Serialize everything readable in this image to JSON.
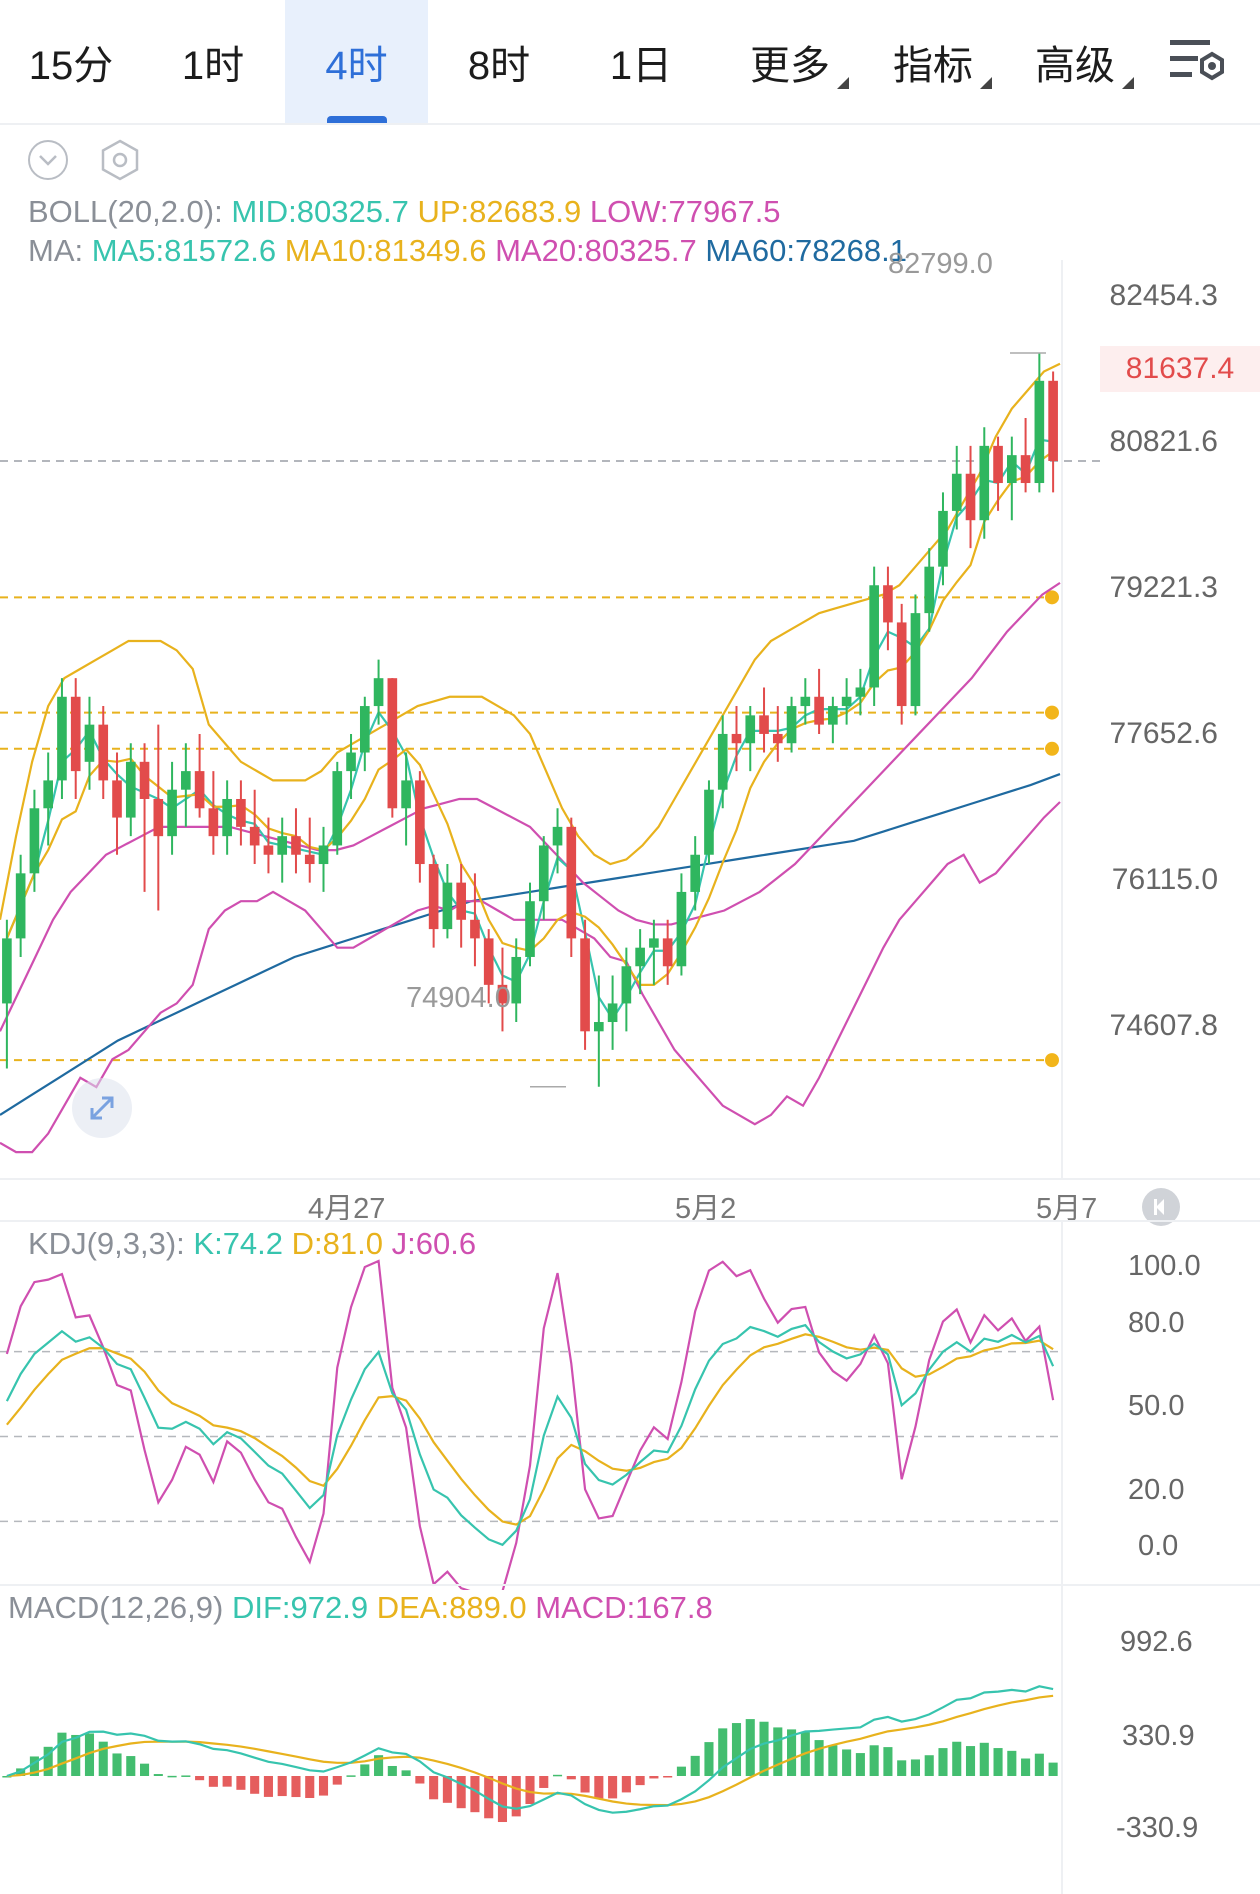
{
  "tabs": [
    {
      "label": "15分",
      "active": false,
      "dropdown": false
    },
    {
      "label": "1时",
      "active": false,
      "dropdown": false
    },
    {
      "label": "4时",
      "active": true,
      "dropdown": false
    },
    {
      "label": "8时",
      "active": false,
      "dropdown": false
    },
    {
      "label": "1日",
      "active": false,
      "dropdown": false
    },
    {
      "label": "更多",
      "active": false,
      "dropdown": true
    },
    {
      "label": "指标",
      "active": false,
      "dropdown": true
    },
    {
      "label": "高级",
      "active": false,
      "dropdown": true
    }
  ],
  "settings_icon": "chart-settings-icon",
  "colors": {
    "up": "#2fb65f",
    "down": "#e24b4b",
    "boll_mid": "#37c4ae",
    "boll_up": "#e8b21d",
    "boll_low": "#cf4fb0",
    "ma60": "#1f6aa0",
    "kdj_k": "#37c4ae",
    "kdj_d": "#e8b21d",
    "kdj_j": "#cf4fb0",
    "accent": "#2e6fd8"
  },
  "main": {
    "boll": {
      "prefix": "BOLL(20,2.0):",
      "mid": "MID:80325.7",
      "up": "UP:82683.9",
      "low": "LOW:77967.5"
    },
    "ma": {
      "prefix": "MA:",
      "ma5": "MA5:81572.6",
      "ma10": "MA10:81349.6",
      "ma20": "MA20:80325.7",
      "ma60": "MA60:78268.1"
    },
    "price_axis": [
      "82454.3",
      "80821.6",
      "79221.3",
      "77652.6",
      "76115.0",
      "74607.8"
    ],
    "current_price": "81637.4",
    "high_label": "82799.0",
    "low_label": "74904.0",
    "alert_lines": [
      80170,
      78930,
      78540,
      75190
    ],
    "x_labels": [
      {
        "text": "4月27",
        "index": 25
      },
      {
        "text": "5月2",
        "index": 52
      },
      {
        "text": "5月7",
        "index": 78
      }
    ]
  },
  "chart_data": [
    {
      "type": "candlestick",
      "title": "4时",
      "ylim": [
        73900,
        83800
      ],
      "candles_ohlc": [
        [
          75800,
          76700,
          75100,
          76500
        ],
        [
          76500,
          77400,
          76300,
          77200
        ],
        [
          77200,
          78100,
          77000,
          77900
        ],
        [
          77900,
          78500,
          77500,
          78200
        ],
        [
          78200,
          79300,
          78000,
          79100
        ],
        [
          79100,
          79300,
          78000,
          78300
        ],
        [
          78400,
          79100,
          78100,
          78800
        ],
        [
          78800,
          79000,
          78000,
          78200
        ],
        [
          78200,
          78500,
          77400,
          77800
        ],
        [
          77800,
          78600,
          77600,
          78400
        ],
        [
          78400,
          78600,
          77000,
          78000
        ],
        [
          78000,
          78800,
          76800,
          77600
        ],
        [
          77600,
          78400,
          77400,
          78100
        ],
        [
          78100,
          78600,
          77700,
          78300
        ],
        [
          78300,
          78700,
          77800,
          77900
        ],
        [
          77900,
          78300,
          77400,
          77600
        ],
        [
          77600,
          78200,
          77400,
          78000
        ],
        [
          78000,
          78200,
          77500,
          77700
        ],
        [
          77700,
          78100,
          77300,
          77500
        ],
        [
          77500,
          77800,
          77200,
          77400
        ],
        [
          77400,
          77800,
          77100,
          77600
        ],
        [
          77600,
          77900,
          77200,
          77400
        ],
        [
          77400,
          77800,
          77100,
          77300
        ],
        [
          77300,
          77700,
          77000,
          77500
        ],
        [
          77500,
          78400,
          77400,
          78300
        ],
        [
          78300,
          78700,
          78000,
          78500
        ],
        [
          78500,
          79100,
          78300,
          79000
        ],
        [
          79000,
          79500,
          78800,
          79300
        ],
        [
          79300,
          79300,
          77800,
          77900
        ],
        [
          77900,
          78500,
          77500,
          78200
        ],
        [
          78200,
          78300,
          77100,
          77300
        ],
        [
          77300,
          77400,
          76400,
          76600
        ],
        [
          76600,
          77300,
          76500,
          77100
        ],
        [
          77100,
          77300,
          76400,
          76700
        ],
        [
          76700,
          77200,
          76200,
          76500
        ],
        [
          76500,
          76600,
          75800,
          76000
        ],
        [
          76000,
          76400,
          75500,
          75800
        ],
        [
          75800,
          76500,
          75600,
          76300
        ],
        [
          76300,
          77100,
          76200,
          76900
        ],
        [
          76900,
          77600,
          76700,
          77500
        ],
        [
          77500,
          77900,
          77200,
          77700
        ],
        [
          77700,
          77800,
          76300,
          76500
        ],
        [
          76500,
          76700,
          75300,
          75500
        ],
        [
          75500,
          76100,
          74904,
          75600
        ],
        [
          75600,
          76100,
          75300,
          75800
        ],
        [
          75800,
          76400,
          75500,
          76200
        ],
        [
          76200,
          76600,
          75900,
          76400
        ],
        [
          76400,
          76700,
          76000,
          76500
        ],
        [
          76500,
          76700,
          76000,
          76200
        ],
        [
          76200,
          77200,
          76100,
          77000
        ],
        [
          77000,
          77600,
          76800,
          77400
        ],
        [
          77400,
          78200,
          77300,
          78100
        ],
        [
          78100,
          78900,
          77900,
          78700
        ],
        [
          78700,
          79000,
          78300,
          78600
        ],
        [
          78600,
          79000,
          78300,
          78900
        ],
        [
          78900,
          79200,
          78500,
          78700
        ],
        [
          78700,
          79000,
          78400,
          78600
        ],
        [
          78600,
          79100,
          78500,
          79000
        ],
        [
          79000,
          79300,
          78800,
          79100
        ],
        [
          79100,
          79400,
          78700,
          78800
        ],
        [
          78800,
          79100,
          78600,
          79000
        ],
        [
          79000,
          79300,
          78800,
          79100
        ],
        [
          79100,
          79400,
          78900,
          79200
        ],
        [
          79200,
          80500,
          79000,
          80300
        ],
        [
          80300,
          80500,
          79600,
          79900
        ],
        [
          79900,
          80100,
          78800,
          79000
        ],
        [
          79000,
          80200,
          78900,
          80000
        ],
        [
          80000,
          80700,
          79800,
          80500
        ],
        [
          80500,
          81300,
          80300,
          81100
        ],
        [
          81100,
          81800,
          80900,
          81500
        ],
        [
          81500,
          81800,
          80700,
          81000
        ],
        [
          81000,
          82000,
          80800,
          81800
        ],
        [
          81800,
          81900,
          81100,
          81400
        ],
        [
          81400,
          81900,
          81000,
          81700
        ],
        [
          81700,
          82100,
          81300,
          81400
        ],
        [
          81400,
          82799,
          81300,
          82500
        ],
        [
          82500,
          82600,
          81300,
          81637.4
        ]
      ],
      "boll_up": [
        76700,
        77600,
        78400,
        79000,
        79300,
        79400,
        79500,
        79600,
        79700,
        79700,
        79700,
        79600,
        79400,
        78800,
        78600,
        78400,
        78300,
        78200,
        78200,
        78200,
        78300,
        78500,
        78600,
        78700,
        78800,
        78900,
        79000,
        79050,
        79100,
        79100,
        79100,
        79000,
        78900,
        78700,
        78300,
        77900,
        77600,
        77400,
        77300,
        77350,
        77500,
        77700,
        78000,
        78300,
        78600,
        78900,
        79200,
        79500,
        79700,
        79800,
        79900,
        80000,
        80050,
        80100,
        80150,
        80200,
        80300,
        80500,
        80700,
        80900,
        81200,
        81500,
        81900,
        82200,
        82400,
        82600,
        82683.9
      ],
      "boll_mid": [
        75500,
        75900,
        76300,
        76700,
        77000,
        77200,
        77400,
        77500,
        77600,
        77700,
        77700,
        77700,
        77700,
        77700,
        77650,
        77600,
        77550,
        77500,
        77450,
        77450,
        77500,
        77600,
        77700,
        77800,
        77900,
        77950,
        78000,
        78000,
        77900,
        77800,
        77700,
        77500,
        77300,
        77100,
        76950,
        76800,
        76700,
        76650,
        76650,
        76700,
        76750,
        76800,
        76900,
        77000,
        77150,
        77300,
        77500,
        77700,
        77900,
        78100,
        78300,
        78500,
        78700,
        78900,
        79100,
        79300,
        79550,
        79800,
        80000,
        80200,
        80325.7
      ],
      "ma60": [
        74600,
        74800,
        75000,
        75200,
        75400,
        75550,
        75700,
        75850,
        76000,
        76150,
        76300,
        76400,
        76500,
        76600,
        76700,
        76800,
        76900,
        76950,
        77000,
        77050,
        77100,
        77150,
        77200,
        77250,
        77300,
        77350,
        77400,
        77450,
        77500,
        77550,
        77650,
        77750,
        77850,
        77950,
        78050,
        78150,
        78268.1
      ],
      "kdj": {
        "k": 74.2,
        "d": 81.0,
        "j": 60.6
      },
      "macd": {
        "dif": 972.9,
        "dea": 889.0,
        "macd": 167.8
      }
    }
  ],
  "kdj": {
    "prefix": "KDJ(9,3,3):",
    "k": "K:74.2",
    "d": "D:81.0",
    "j": "J:60.6",
    "axis": [
      "100.0",
      "80.0",
      "50.0",
      "20.0",
      "0.0"
    ]
  },
  "macd": {
    "prefix": "MACD(12,26,9)",
    "dif": "DIF:972.9",
    "dea": "DEA:889.0",
    "macd": "MACD:167.8",
    "axis": [
      "992.6",
      "330.9",
      "-330.9"
    ]
  }
}
